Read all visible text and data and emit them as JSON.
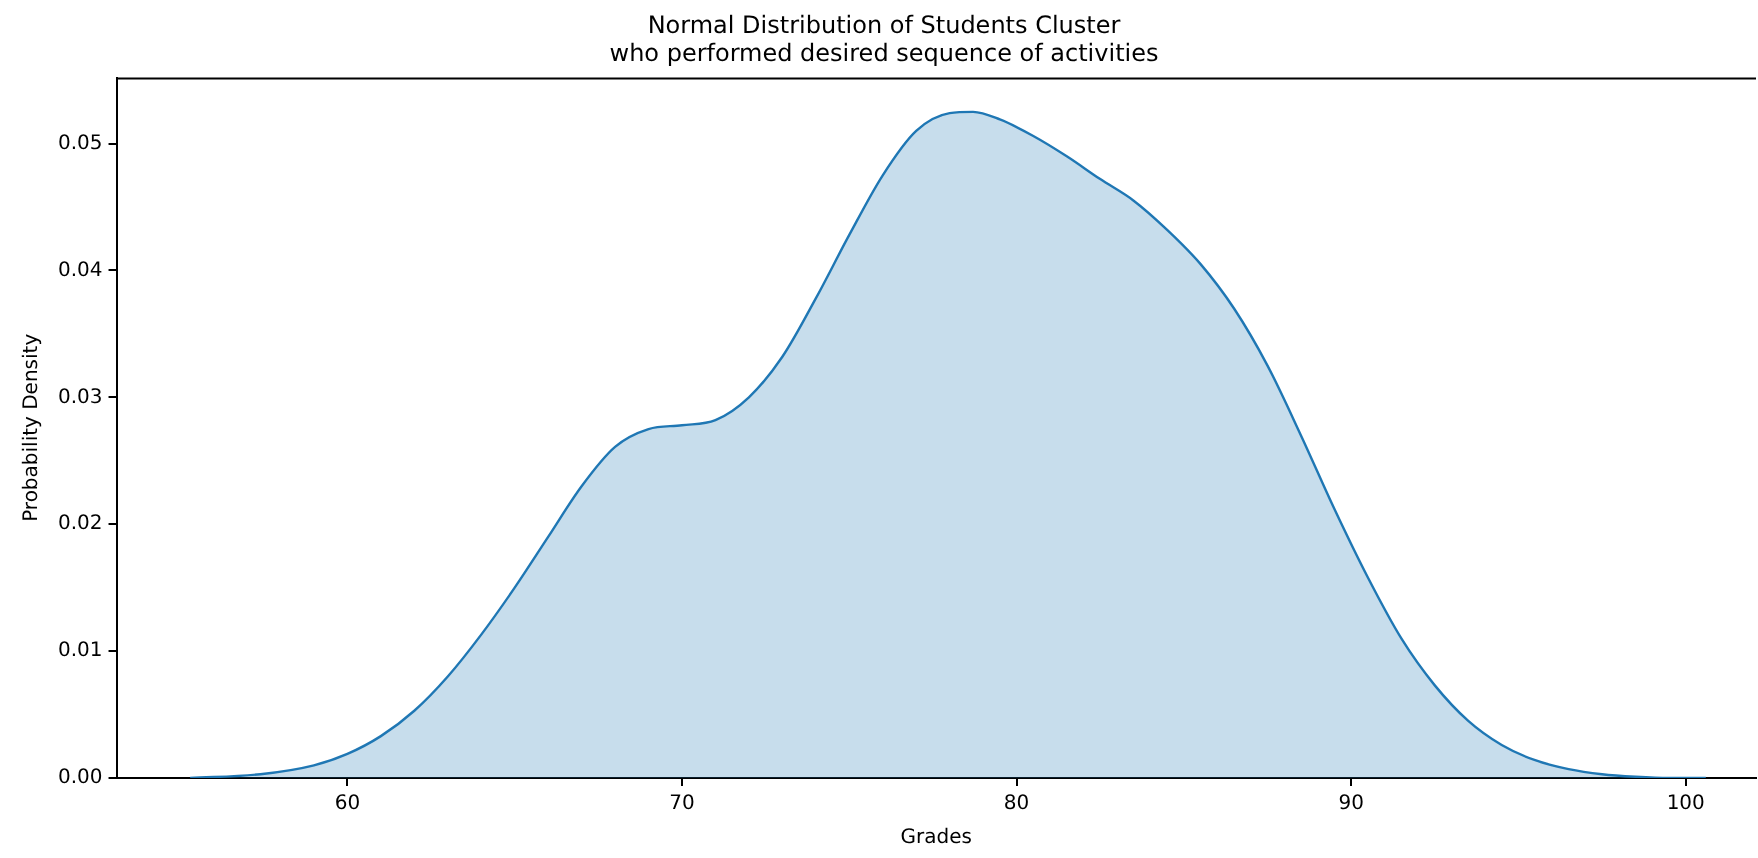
{
  "chart_data": {
    "type": "area",
    "title": "Normal Distribution of Students Cluster\nwho performed desired sequence of activities",
    "xlabel": "Grades",
    "ylabel": "Probability Density",
    "xlim": [
      53.1,
      102.1
    ],
    "xticks": [
      60,
      70,
      80,
      90,
      100
    ],
    "ylim": [
      0,
      0.0552
    ],
    "yticks": [
      {
        "value": 0,
        "label": "0.00"
      },
      0.01,
      0.02,
      0.03,
      0.04,
      0.05
    ],
    "grid": false,
    "legend": false,
    "marker": "none",
    "line_style": "solid",
    "series": [
      {
        "color": "#1f77b4",
        "x": [
          55.3,
          57.4,
          59,
          60,
          61,
          62,
          63,
          64,
          65,
          66,
          67,
          68,
          69,
          70,
          71,
          72,
          73,
          74,
          75,
          76,
          77,
          78,
          78.7,
          79.5,
          80.5,
          81.5,
          82.5,
          83.5,
          84.5,
          85.5,
          86.5,
          87.5,
          88.5,
          89.5,
          90.5,
          91.5,
          92.5,
          93.5,
          94.5,
          95.5,
          96.5,
          97.5,
          98.5,
          99.5,
          100.6
        ],
        "values": [
          0,
          0.0003,
          0.001,
          0.0019,
          0.0033,
          0.0053,
          0.008,
          0.0113,
          0.015,
          0.019,
          0.023,
          0.0261,
          0.0275,
          0.0278,
          0.0282,
          0.03,
          0.0332,
          0.0378,
          0.0428,
          0.0475,
          0.051,
          0.0524,
          0.0525,
          0.0519,
          0.0506,
          0.049,
          0.0472,
          0.0455,
          0.0432,
          0.0405,
          0.037,
          0.0325,
          0.027,
          0.0212,
          0.0158,
          0.011,
          0.0073,
          0.0045,
          0.0026,
          0.0014,
          0.0007,
          0.0003,
          0.0001,
          0,
          0
        ]
      }
    ]
  }
}
